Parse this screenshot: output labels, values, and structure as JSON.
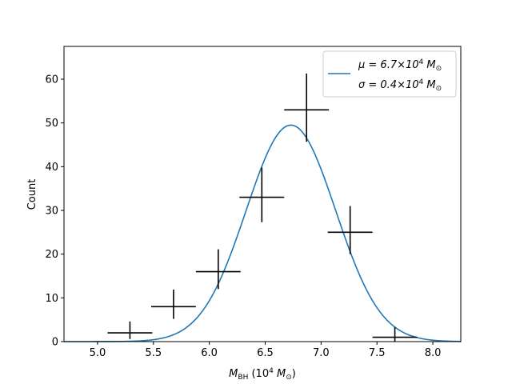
{
  "chart_data": {
    "type": "scatter",
    "xlabel": {
      "main": "M",
      "sub": "BH",
      "rest_open": " (10",
      "sup": "4",
      "rest_close": " M",
      "odot": "⊙",
      "end": ")"
    },
    "ylabel": "Count",
    "xlim": [
      4.7,
      8.25
    ],
    "ylim": [
      0,
      67.5
    ],
    "x_ticks": [
      5.0,
      5.5,
      6.0,
      6.5,
      7.0,
      7.5,
      8.0
    ],
    "x_tick_labels": [
      "5.0",
      "5.5",
      "6.0",
      "6.5",
      "7.0",
      "7.5",
      "8.0"
    ],
    "y_ticks": [
      0,
      10,
      20,
      30,
      40,
      50,
      60
    ],
    "y_tick_labels": [
      "0",
      "10",
      "20",
      "30",
      "40",
      "50",
      "60"
    ],
    "grid": false,
    "legend_position": "top-right",
    "histogram_points": [
      {
        "x": 5.29,
        "y": 2,
        "xerr": 0.2,
        "yerr_low": 1.4,
        "yerr_high": 2.6
      },
      {
        "x": 5.68,
        "y": 8,
        "xerr": 0.2,
        "yerr_low": 2.8,
        "yerr_high": 3.9
      },
      {
        "x": 6.08,
        "y": 16,
        "xerr": 0.2,
        "yerr_low": 4.0,
        "yerr_high": 5.1
      },
      {
        "x": 6.47,
        "y": 33,
        "xerr": 0.2,
        "yerr_low": 5.7,
        "yerr_high": 6.8
      },
      {
        "x": 6.87,
        "y": 53,
        "xerr": 0.2,
        "yerr_low": 7.3,
        "yerr_high": 8.3
      },
      {
        "x": 7.26,
        "y": 25,
        "xerr": 0.2,
        "yerr_low": 5.0,
        "yerr_high": 6.0
      },
      {
        "x": 7.66,
        "y": 1,
        "xerr": 0.2,
        "yerr_low": 1.0,
        "yerr_high": 2.3
      }
    ],
    "gaussian_fit": {
      "mu": 6.73,
      "sigma": 0.4,
      "amplitude": 49.5,
      "color": "#1f77b4",
      "legend_mu": {
        "prefix": "μ = 6.7×10",
        "sup": "4",
        "unit": " M",
        "odot": "⊙"
      },
      "legend_sigma": {
        "prefix": "σ = 0.4×10",
        "sup": "4",
        "unit": " M",
        "odot": "⊙"
      }
    },
    "point_color": "#000000"
  }
}
